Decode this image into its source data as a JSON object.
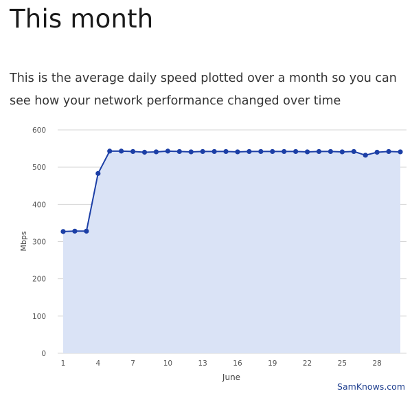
{
  "header": {
    "title": "This month",
    "description": "This is the average daily speed plotted over a month so you can see how your network performance changed over time"
  },
  "chart_data": {
    "type": "area",
    "title": "",
    "xlabel": "June",
    "ylabel": "Mbps",
    "ylim": [
      0,
      600
    ],
    "yticks": [
      0,
      100,
      200,
      300,
      400,
      500,
      600
    ],
    "xlim": [
      1,
      30
    ],
    "xticks": [
      1,
      4,
      7,
      10,
      13,
      16,
      19,
      22,
      25,
      28
    ],
    "grid": true,
    "legend": "none",
    "series": [
      {
        "x": [
          1,
          2,
          3,
          4,
          5,
          6,
          7,
          8,
          9,
          10,
          11,
          12,
          13,
          14,
          15,
          16,
          17,
          18,
          19,
          20,
          21,
          22,
          23,
          24,
          25,
          26,
          27,
          28,
          29,
          30
        ],
        "values": [
          327,
          328,
          328,
          483,
          543,
          543,
          542,
          540,
          541,
          543,
          542,
          541,
          542,
          542,
          542,
          541,
          542,
          542,
          542,
          542,
          542,
          541,
          542,
          542,
          541,
          542,
          532,
          540,
          542,
          541
        ]
      }
    ],
    "colors": {
      "line": "#1c3fa6",
      "fill": "#dae3f6",
      "grid": "#d6d6d6",
      "tick_text": "#555555"
    }
  },
  "footer": {
    "credit": "SamKnows.com"
  }
}
